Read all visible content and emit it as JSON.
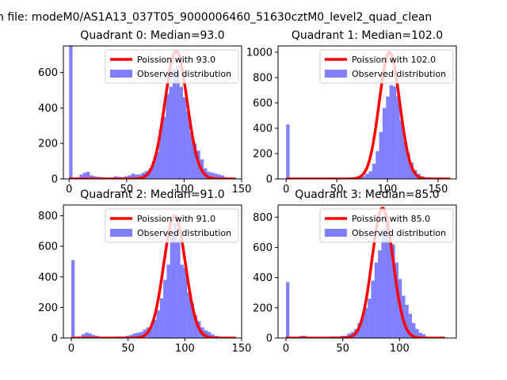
{
  "figure_title": "n file: modeM0/AS1A13_037T05_9000006460_51630cztM0_level2_quad_clean",
  "chart_data": [
    {
      "type": "bar",
      "title": "Quadrant 0: Median=93.0",
      "xlim": [
        -5,
        150
      ],
      "ylim": [
        0,
        750
      ],
      "xticks": [
        0,
        50,
        100,
        150
      ],
      "yticks": [
        0,
        200,
        400,
        600
      ],
      "bin_width": 3,
      "bins_x": [
        0,
        3,
        6,
        9,
        12,
        15,
        18,
        21,
        24,
        27,
        30,
        33,
        36,
        39,
        42,
        45,
        48,
        51,
        54,
        57,
        60,
        63,
        66,
        69,
        72,
        75,
        78,
        81,
        84,
        87,
        90,
        93,
        96,
        99,
        102,
        105,
        108,
        111,
        114,
        117,
        120,
        123,
        126,
        129,
        132,
        135,
        138,
        141
      ],
      "bins_y": [
        750,
        0,
        10,
        25,
        35,
        40,
        20,
        15,
        12,
        10,
        8,
        5,
        8,
        15,
        12,
        10,
        15,
        20,
        30,
        25,
        25,
        35,
        45,
        60,
        100,
        150,
        280,
        350,
        480,
        520,
        620,
        640,
        520,
        460,
        380,
        260,
        200,
        160,
        110,
        60,
        40,
        35,
        30,
        25,
        20,
        10,
        8,
        5
      ],
      "curve": {
        "name": "Poission with 93.0",
        "mean": 93,
        "peak": 720,
        "x_range": [
          0,
          145
        ]
      },
      "legend": [
        "Poission with 93.0",
        "Observed distribution"
      ],
      "legend_position": "upper right"
    },
    {
      "type": "bar",
      "title": "Quadrant 1: Median=102.0",
      "xlim": [
        -8,
        168
      ],
      "ylim": [
        0,
        1050
      ],
      "xticks": [
        0,
        50,
        100,
        150
      ],
      "yticks": [
        0,
        200,
        400,
        600,
        800,
        1000
      ],
      "bin_width": 3.4,
      "bins_x": [
        0,
        3.4,
        6.8,
        10.2,
        13.6,
        17,
        20.4,
        23.8,
        27.2,
        30.6,
        34,
        37.4,
        40.8,
        44.2,
        47.6,
        51,
        54.4,
        57.8,
        61.2,
        64.6,
        68,
        71.4,
        74.8,
        78.2,
        81.6,
        85,
        88.4,
        91.8,
        95.2,
        98.6,
        102,
        105.4,
        108.8,
        112.2,
        115.6,
        119,
        122.4,
        125.8,
        129.2,
        132.6,
        136,
        139.4,
        142.8,
        146.2,
        149.6,
        153,
        156.4,
        159.8
      ],
      "bins_y": [
        430,
        0,
        0,
        0,
        0,
        0,
        0,
        0,
        0,
        0,
        0,
        0,
        0,
        0,
        0,
        0,
        0,
        0,
        0,
        0,
        5,
        10,
        20,
        40,
        60,
        120,
        220,
        370,
        560,
        650,
        740,
        730,
        650,
        460,
        300,
        200,
        130,
        70,
        40,
        20,
        10,
        5,
        3,
        0,
        0,
        0,
        0,
        0
      ],
      "curve": {
        "name": "Poission with 102.0",
        "mean": 102,
        "peak": 1000,
        "x_range": [
          0,
          162
        ]
      },
      "legend": [
        "Poission with 102.0",
        "Observed distribution"
      ],
      "legend_position": "upper right"
    },
    {
      "type": "bar",
      "title": "Quadrant 2: Median=91.0",
      "xlim": [
        -7,
        150
      ],
      "ylim": [
        0,
        870
      ],
      "xticks": [
        0,
        50,
        100,
        150
      ],
      "yticks": [
        0,
        200,
        400,
        600,
        800
      ],
      "bin_width": 3,
      "bins_x": [
        0,
        3,
        6,
        9,
        12,
        15,
        18,
        21,
        24,
        27,
        30,
        33,
        36,
        39,
        42,
        45,
        48,
        51,
        54,
        57,
        60,
        63,
        66,
        69,
        72,
        75,
        78,
        81,
        84,
        87,
        90,
        93,
        96,
        99,
        102,
        105,
        108,
        111,
        114,
        117,
        120,
        123,
        126,
        129,
        132,
        135,
        138,
        141
      ],
      "bins_y": [
        510,
        0,
        10,
        25,
        35,
        30,
        20,
        15,
        10,
        8,
        5,
        5,
        5,
        10,
        10,
        10,
        15,
        20,
        30,
        35,
        40,
        55,
        70,
        80,
        120,
        180,
        260,
        380,
        480,
        660,
        750,
        640,
        480,
        460,
        300,
        230,
        150,
        110,
        70,
        50,
        40,
        25,
        15,
        10,
        5,
        5,
        3,
        0
      ],
      "curve": {
        "name": "Poission with 91.0",
        "mean": 91,
        "peak": 800,
        "x_range": [
          0,
          145
        ]
      },
      "legend": [
        "Poission with 91.0",
        "Observed distribution"
      ],
      "legend_position": "upper right"
    },
    {
      "type": "bar",
      "title": "Quadrant 3: Median=85.0",
      "xlim": [
        -7,
        150
      ],
      "ylim": [
        0,
        880
      ],
      "xticks": [
        0,
        50,
        100
      ],
      "yticks": [
        0,
        200,
        400,
        600,
        800
      ],
      "bin_width": 3,
      "bins_x": [
        0,
        3,
        6,
        9,
        12,
        15,
        18,
        21,
        24,
        27,
        30,
        33,
        36,
        39,
        42,
        45,
        48,
        51,
        54,
        57,
        60,
        63,
        66,
        69,
        72,
        75,
        78,
        81,
        84,
        87,
        90,
        93,
        96,
        99,
        102,
        105,
        108,
        111,
        114,
        117,
        120,
        123,
        126,
        129,
        132,
        135,
        138,
        141
      ],
      "bins_y": [
        370,
        0,
        0,
        5,
        15,
        15,
        5,
        0,
        0,
        0,
        0,
        0,
        5,
        10,
        10,
        10,
        15,
        15,
        30,
        40,
        60,
        100,
        140,
        200,
        260,
        380,
        500,
        580,
        720,
        780,
        700,
        620,
        500,
        390,
        280,
        220,
        160,
        100,
        60,
        35,
        25,
        10,
        5,
        3,
        0,
        0,
        0,
        0
      ],
      "curve": {
        "name": "Poission with 85.0",
        "mean": 85,
        "peak": 860,
        "x_range": [
          0,
          140
        ]
      },
      "legend": [
        "Poission with 85.0",
        "Observed distribution"
      ],
      "legend_position": "upper right"
    }
  ]
}
